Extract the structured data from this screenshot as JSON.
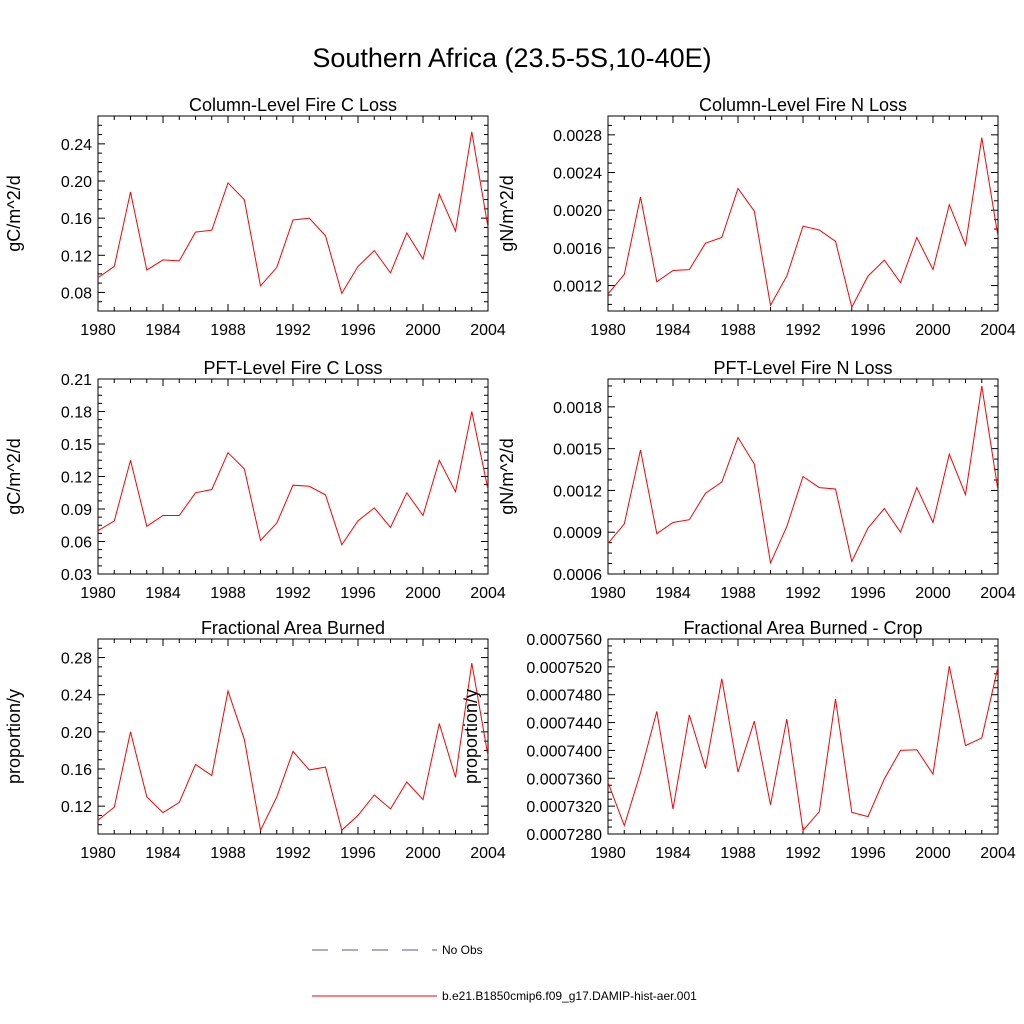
{
  "figure": {
    "title": "Southern Africa (23.5-5S,10-40E)"
  },
  "legend": [
    {
      "label": "No Obs",
      "color": "#5a5aa0",
      "style": "dashed"
    },
    {
      "label": "b.e21.B1850cmip6.f09_g17.DAMIP-hist-aer.001",
      "color": "#ff0000",
      "style": "solid"
    }
  ],
  "chart_data": [
    {
      "type": "line",
      "title": "Column-Level Fire C Loss",
      "ylabel": "gC/m^2/d",
      "xlabel": "",
      "xlim": [
        1980,
        2004
      ],
      "ylim": [
        0.06,
        0.27
      ],
      "xticks": [
        1980,
        1984,
        1988,
        1992,
        1996,
        2000,
        2004
      ],
      "yticks": [
        0.08,
        0.12,
        0.16,
        0.2,
        0.24
      ],
      "ytick_labels": [
        "0.08",
        "0.12",
        "0.16",
        "0.20",
        "0.24"
      ],
      "x": [
        1980,
        1981,
        1982,
        1983,
        1984,
        1985,
        1986,
        1987,
        1988,
        1989,
        1990,
        1991,
        1992,
        1993,
        1994,
        1995,
        1996,
        1997,
        1998,
        1999,
        2000,
        2001,
        2002,
        2003,
        2004
      ],
      "series": [
        {
          "name": "b.e21.B1850cmip6.f09_g17.DAMIP-hist-aer.001",
          "color": "#ff0000",
          "values": [
            0.096,
            0.108,
            0.188,
            0.104,
            0.115,
            0.114,
            0.145,
            0.147,
            0.198,
            0.18,
            0.087,
            0.107,
            0.158,
            0.16,
            0.141,
            0.079,
            0.108,
            0.125,
            0.101,
            0.144,
            0.116,
            0.186,
            0.146,
            0.253,
            0.15
          ]
        }
      ]
    },
    {
      "type": "line",
      "title": "Column-Level Fire N Loss",
      "ylabel": "gN/m^2/d",
      "xlabel": "",
      "xlim": [
        1980,
        2004
      ],
      "ylim": [
        0.00093,
        0.003
      ],
      "xticks": [
        1980,
        1984,
        1988,
        1992,
        1996,
        2000,
        2004
      ],
      "yticks": [
        0.0012,
        0.0016,
        0.002,
        0.0024,
        0.0028
      ],
      "ytick_labels": [
        "0.0012",
        "0.0016",
        "0.0020",
        "0.0024",
        "0.0028"
      ],
      "x": [
        1980,
        1981,
        1982,
        1983,
        1984,
        1985,
        1986,
        1987,
        1988,
        1989,
        1990,
        1991,
        1992,
        1993,
        1994,
        1995,
        1996,
        1997,
        1998,
        1999,
        2000,
        2001,
        2002,
        2003,
        2004
      ],
      "series": [
        {
          "name": "b.e21.B1850cmip6.f09_g17.DAMIP-hist-aer.001",
          "color": "#ff0000",
          "values": [
            0.00111,
            0.00132,
            0.00214,
            0.00124,
            0.00136,
            0.00137,
            0.00165,
            0.00171,
            0.00223,
            0.00199,
            0.00099,
            0.0013,
            0.00183,
            0.00179,
            0.00167,
            0.00097,
            0.0013,
            0.00147,
            0.00123,
            0.00171,
            0.00137,
            0.00206,
            0.00163,
            0.00277,
            0.00172
          ]
        }
      ]
    },
    {
      "type": "line",
      "title": "PFT-Level Fire C Loss",
      "ylabel": "gC/m^2/d",
      "xlabel": "",
      "xlim": [
        1980,
        2004
      ],
      "ylim": [
        0.03,
        0.21
      ],
      "xticks": [
        1980,
        1984,
        1988,
        1992,
        1996,
        2000,
        2004
      ],
      "yticks": [
        0.03,
        0.06,
        0.09,
        0.12,
        0.15,
        0.18,
        0.21
      ],
      "ytick_labels": [
        "0.03",
        "0.06",
        "0.09",
        "0.12",
        "0.15",
        "0.18",
        "0.21"
      ],
      "x": [
        1980,
        1981,
        1982,
        1983,
        1984,
        1985,
        1986,
        1987,
        1988,
        1989,
        1990,
        1991,
        1992,
        1993,
        1994,
        1995,
        1996,
        1997,
        1998,
        1999,
        2000,
        2001,
        2002,
        2003,
        2004
      ],
      "series": [
        {
          "name": "b.e21.B1850cmip6.f09_g17.DAMIP-hist-aer.001",
          "color": "#ff0000",
          "values": [
            0.07,
            0.079,
            0.135,
            0.074,
            0.084,
            0.084,
            0.105,
            0.108,
            0.142,
            0.127,
            0.061,
            0.077,
            0.112,
            0.111,
            0.103,
            0.057,
            0.079,
            0.091,
            0.073,
            0.105,
            0.084,
            0.135,
            0.106,
            0.18,
            0.108
          ]
        }
      ]
    },
    {
      "type": "line",
      "title": "PFT-Level Fire N Loss",
      "ylabel": "gN/m^2/d",
      "xlabel": "",
      "xlim": [
        1980,
        2004
      ],
      "ylim": [
        0.0006,
        0.002
      ],
      "xticks": [
        1980,
        1984,
        1988,
        1992,
        1996,
        2000,
        2004
      ],
      "yticks": [
        0.0006,
        0.0009,
        0.0012,
        0.0015,
        0.0018
      ],
      "ytick_labels": [
        "0.0006",
        "0.0009",
        "0.0012",
        "0.0015",
        "0.0018"
      ],
      "x": [
        1980,
        1981,
        1982,
        1983,
        1984,
        1985,
        1986,
        1987,
        1988,
        1989,
        1990,
        1991,
        1992,
        1993,
        1994,
        1995,
        1996,
        1997,
        1998,
        1999,
        2000,
        2001,
        2002,
        2003,
        2004
      ],
      "series": [
        {
          "name": "b.e21.B1850cmip6.f09_g17.DAMIP-hist-aer.001",
          "color": "#ff0000",
          "values": [
            0.00082,
            0.00096,
            0.00149,
            0.00089,
            0.00097,
            0.00099,
            0.00118,
            0.00126,
            0.00158,
            0.00139,
            0.00068,
            0.00094,
            0.0013,
            0.00122,
            0.00121,
            0.00069,
            0.00093,
            0.00107,
            0.0009,
            0.00122,
            0.00097,
            0.00146,
            0.00117,
            0.00195,
            0.0012
          ]
        }
      ]
    },
    {
      "type": "line",
      "title": "Fractional Area Burned",
      "ylabel": "proportion/y",
      "xlabel": "",
      "xlim": [
        1980,
        2004
      ],
      "ylim": [
        0.09,
        0.3
      ],
      "xticks": [
        1980,
        1984,
        1988,
        1992,
        1996,
        2000,
        2004
      ],
      "yticks": [
        0.12,
        0.16,
        0.2,
        0.24,
        0.28
      ],
      "ytick_labels": [
        "0.12",
        "0.16",
        "0.20",
        "0.24",
        "0.28"
      ],
      "x": [
        1980,
        1981,
        1982,
        1983,
        1984,
        1985,
        1986,
        1987,
        1988,
        1989,
        1990,
        1991,
        1992,
        1993,
        1994,
        1995,
        1996,
        1997,
        1998,
        1999,
        2000,
        2001,
        2002,
        2003,
        2004
      ],
      "series": [
        {
          "name": "b.e21.B1850cmip6.f09_g17.DAMIP-hist-aer.001",
          "color": "#ff0000",
          "values": [
            0.105,
            0.119,
            0.2,
            0.13,
            0.113,
            0.124,
            0.165,
            0.153,
            0.244,
            0.192,
            0.094,
            0.13,
            0.179,
            0.159,
            0.162,
            0.094,
            0.11,
            0.132,
            0.117,
            0.146,
            0.127,
            0.209,
            0.151,
            0.274,
            0.174
          ]
        }
      ]
    },
    {
      "type": "line",
      "title": "Fractional Area Burned - Crop",
      "ylabel": "proportion/y",
      "xlabel": "",
      "xlim": [
        1980,
        2004
      ],
      "ylim": [
        0.000728,
        0.000756
      ],
      "xticks": [
        1980,
        1984,
        1988,
        1992,
        1996,
        2000,
        2004
      ],
      "yticks": [
        0.000728,
        0.000732,
        0.000736,
        0.00074,
        0.000744,
        0.000748,
        0.000752,
        0.000756
      ],
      "ytick_labels": [
        "0.0007280",
        "0.0007320",
        "0.0007360",
        "0.0007400",
        "0.0007440",
        "0.0007480",
        "0.0007520",
        "0.0007560"
      ],
      "x": [
        1980,
        1981,
        1982,
        1983,
        1984,
        1985,
        1986,
        1987,
        1988,
        1989,
        1990,
        1991,
        1992,
        1993,
        1994,
        1995,
        1996,
        1997,
        1998,
        1999,
        2000,
        2001,
        2002,
        2003,
        2004
      ],
      "series": [
        {
          "name": "b.e21.B1850cmip6.f09_g17.DAMIP-hist-aer.001",
          "color": "#ff0000",
          "values": [
            0.0007354,
            0.0007292,
            0.0007368,
            0.0007456,
            0.0007316,
            0.0007451,
            0.0007374,
            0.0007503,
            0.0007369,
            0.0007442,
            0.0007322,
            0.0007445,
            0.0007285,
            0.0007312,
            0.0007474,
            0.0007311,
            0.0007305,
            0.0007359,
            0.00074,
            0.0007401,
            0.0007366,
            0.0007521,
            0.0007407,
            0.0007418,
            0.000752
          ]
        }
      ]
    }
  ]
}
